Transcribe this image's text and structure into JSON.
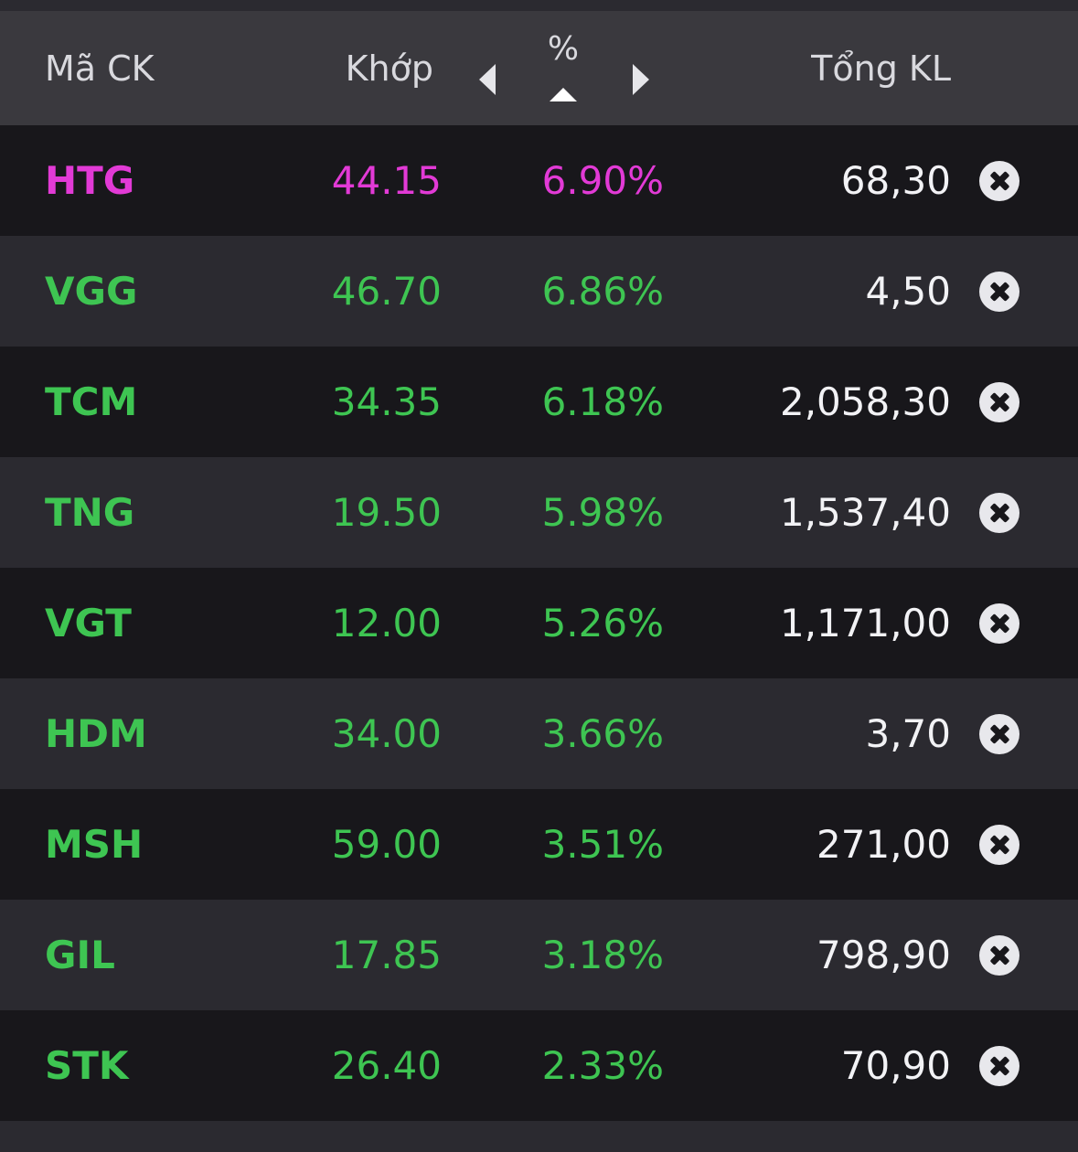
{
  "header": {
    "symbol_label": "Mã CK",
    "price_label": "Khớp",
    "percent_label": "%",
    "volume_label": "Tổng KL",
    "sort_direction": "ascending-arrow",
    "prev_icon": "triangle-left-icon",
    "next_icon": "triangle-right-icon"
  },
  "colors": {
    "ceiling": "#e23ad6",
    "up": "#3ec552",
    "volume": "#f2f2f5",
    "header_bg": "#3a393e",
    "row_dark": "#18171b",
    "row_light": "#2b2a30"
  },
  "rows": [
    {
      "symbol": "HTG",
      "price": "44.15",
      "change": "6.90%",
      "volume": "68,30",
      "status": "ceiling"
    },
    {
      "symbol": "VGG",
      "price": "46.70",
      "change": "6.86%",
      "volume": "4,50",
      "status": "up"
    },
    {
      "symbol": "TCM",
      "price": "34.35",
      "change": "6.18%",
      "volume": "2,058,30",
      "status": "up"
    },
    {
      "symbol": "TNG",
      "price": "19.50",
      "change": "5.98%",
      "volume": "1,537,40",
      "status": "up"
    },
    {
      "symbol": "VGT",
      "price": "12.00",
      "change": "5.26%",
      "volume": "1,171,00",
      "status": "up"
    },
    {
      "symbol": "HDM",
      "price": "34.00",
      "change": "3.66%",
      "volume": "3,70",
      "status": "up"
    },
    {
      "symbol": "MSH",
      "price": "59.00",
      "change": "3.51%",
      "volume": "271,00",
      "status": "up"
    },
    {
      "symbol": "GIL",
      "price": "17.85",
      "change": "3.18%",
      "volume": "798,90",
      "status": "up"
    },
    {
      "symbol": "STK",
      "price": "26.40",
      "change": "2.33%",
      "volume": "70,90",
      "status": "up"
    }
  ],
  "row_remove_icon": "close-circle-icon"
}
